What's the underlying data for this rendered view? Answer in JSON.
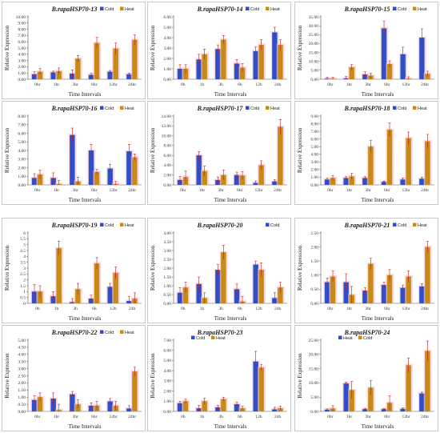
{
  "colors": {
    "cold": "#2f4fc8",
    "heat": "#c88a16",
    "error_bar": "#c81818",
    "glow": "#f2b8c8",
    "axis": "#555555"
  },
  "chart_data": [
    {
      "type": "bar",
      "title": "B.rapaHSP70-13",
      "xlabel": "Time Intervals",
      "ylabel": "Relative Expression",
      "categories": [
        "0hr",
        "1hr",
        "3hr",
        "6hr",
        "12hr",
        "24hr"
      ],
      "series": [
        {
          "name": "Cold",
          "color": "#2f4fc8",
          "values": [
            0.8,
            1.1,
            0.9,
            0.7,
            1.2,
            0.8
          ],
          "errors": [
            0.4,
            0.2,
            0.6,
            0.3,
            0.2,
            0.2
          ]
        },
        {
          "name": "Heat",
          "color": "#c88a16",
          "values": [
            1.2,
            1.3,
            3.3,
            5.8,
            4.9,
            6.3
          ],
          "errors": [
            0.5,
            0.5,
            0.5,
            0.9,
            0.9,
            0.8
          ]
        }
      ],
      "ylim": [
        0,
        10
      ],
      "yticks": [
        "0.00",
        "1.00",
        "2.00",
        "3.00",
        "4.00",
        "5.00",
        "6.00",
        "7.00",
        "8.00",
        "9.00",
        "10.00"
      ],
      "legend": "top-right"
    },
    {
      "type": "bar",
      "title": "B.rapaHSP70-14",
      "xlabel": "Time Intervals",
      "ylabel": "Relative Expression",
      "categories": [
        "0h",
        "1h",
        "3h",
        "6h",
        "12h",
        "24h"
      ],
      "series": [
        {
          "name": "Cold",
          "color": "#2f4fc8",
          "values": [
            1.0,
            1.9,
            2.9,
            1.5,
            2.7,
            4.5
          ],
          "errors": [
            0.4,
            0.5,
            0.4,
            0.4,
            0.4,
            0.5
          ]
        },
        {
          "name": "Heat",
          "color": "#c88a16",
          "values": [
            1.0,
            2.4,
            3.8,
            1.1,
            3.3,
            3.3
          ],
          "errors": [
            0.4,
            0.5,
            0.4,
            0.4,
            0.5,
            0.5
          ]
        }
      ],
      "ylim": [
        0,
        6
      ],
      "yticks": [
        "0.00",
        "1.00",
        "2.00",
        "3.00",
        "4.00",
        "5.00",
        "6.00"
      ],
      "legend": "top-right"
    },
    {
      "type": "bar",
      "title": "B.rapaHSP70-15",
      "xlabel": "Time Intervals",
      "ylabel": "Relative Expression",
      "categories": [
        "0hr",
        "1hr",
        "3hr",
        "6hr",
        "12hr",
        "24hr"
      ],
      "series": [
        {
          "name": "Cold",
          "color": "#2f4fc8",
          "values": [
            0.3,
            0.5,
            2.7,
            28.5,
            14.0,
            23.3
          ],
          "errors": [
            0.8,
            1.0,
            1.5,
            4.0,
            4.0,
            5.0
          ]
        },
        {
          "name": "Heat",
          "color": "#c88a16",
          "values": [
            0.3,
            6.7,
            2.0,
            8.5,
            0.4,
            3.0
          ],
          "errors": [
            0.8,
            1.5,
            1.3,
            1.8,
            1.0,
            1.5
          ]
        }
      ],
      "ylim": [
        0,
        35
      ],
      "yticks": [
        "0.00",
        "5.00",
        "10.00",
        "15.00",
        "20.00",
        "25.00",
        "30.00",
        "35.00"
      ],
      "legend": "top-right"
    },
    {
      "type": "bar",
      "title": "B.rapaHSP70-16",
      "xlabel": "Time Intervals",
      "ylabel": "Relative Expression",
      "categories": [
        "0hr",
        "1hr",
        "3hr",
        "6hr",
        "12hr",
        "24hr"
      ],
      "series": [
        {
          "name": "Cold",
          "color": "#2f4fc8",
          "values": [
            0.8,
            0.8,
            5.8,
            4.0,
            1.9,
            3.9
          ],
          "errors": [
            0.5,
            0.6,
            0.8,
            0.7,
            0.5,
            0.8
          ]
        },
        {
          "name": "Heat",
          "color": "#c88a16",
          "values": [
            1.2,
            0.1,
            0.4,
            1.5,
            0.1,
            3.2
          ],
          "errors": [
            0.5,
            0.4,
            0.5,
            0.3,
            0.3,
            0.4
          ]
        }
      ],
      "ylim": [
        0,
        8
      ],
      "yticks": [
        "0.00",
        "1.00",
        "2.00",
        "3.00",
        "4.00",
        "5.00",
        "6.00",
        "7.00",
        "8.00"
      ],
      "legend": "top-right"
    },
    {
      "type": "bar",
      "title": "B.rapaHSP70-17",
      "xlabel": "Time Intervals",
      "ylabel": "Relative Expression",
      "categories": [
        "0hr",
        "1hr",
        "3hr",
        "6hr",
        "12hr",
        "24hr"
      ],
      "series": [
        {
          "name": "Cold",
          "color": "#2f4fc8",
          "values": [
            1.0,
            6.0,
            1.0,
            2.0,
            0.4,
            0.7
          ],
          "errors": [
            0.7,
            0.8,
            0.6,
            0.6,
            0.4,
            0.4
          ]
        },
        {
          "name": "Heat",
          "color": "#c88a16",
          "values": [
            1.6,
            2.8,
            2.0,
            1.9,
            4.0,
            11.8
          ],
          "errors": [
            1.2,
            1.0,
            1.0,
            0.8,
            0.9,
            1.5
          ]
        }
      ],
      "ylim": [
        0,
        14
      ],
      "yticks": [
        "0.00",
        "2.00",
        "4.00",
        "6.00",
        "8.00",
        "10.00",
        "12.00",
        "14.00"
      ],
      "legend": "top-right"
    },
    {
      "type": "bar",
      "title": "B.rapaHSP70-18",
      "xlabel": "Time Intervals",
      "ylabel": "Relative Expression",
      "categories": [
        "0hr",
        "1hr",
        "3hr",
        "6hr",
        "12hr",
        "24hr"
      ],
      "series": [
        {
          "name": "Cold",
          "color": "#2f4fc8",
          "values": [
            0.7,
            0.9,
            0.9,
            0.4,
            0.7,
            0.8
          ],
          "errors": [
            0.2,
            0.2,
            0.2,
            0.1,
            0.2,
            0.2
          ]
        },
        {
          "name": "Heat",
          "color": "#c88a16",
          "values": [
            0.9,
            1.1,
            5.0,
            7.2,
            6.1,
            5.7
          ],
          "errors": [
            0.3,
            0.4,
            0.8,
            0.9,
            0.8,
            0.9
          ]
        }
      ],
      "ylim": [
        0,
        9
      ],
      "yticks": [
        "0.00",
        "1.00",
        "2.00",
        "3.00",
        "4.00",
        "5.00",
        "6.00",
        "7.00",
        "8.00",
        "9.00"
      ],
      "legend": "top-right"
    },
    {
      "type": "bar",
      "title": "B.rapaHSP70-19",
      "xlabel": "Time Intervals",
      "ylabel": "Relative Expression",
      "categories": [
        "0h",
        "1h",
        "3h",
        "6h",
        "12h",
        "24h"
      ],
      "series": [
        {
          "name": "Cold",
          "color": "#2f4fc8",
          "values": [
            1.0,
            0.6,
            0.1,
            0.4,
            1.4,
            0.2
          ],
          "errors": [
            0.6,
            0.4,
            0.3,
            0.3,
            0.3,
            0.4
          ]
        },
        {
          "name": "Heat",
          "color": "#c88a16",
          "values": [
            1.0,
            4.7,
            1.2,
            3.4,
            2.6,
            0.4
          ],
          "errors": [
            0.5,
            0.6,
            0.5,
            0.5,
            0.5,
            0.5
          ]
        }
      ],
      "ylim": [
        0,
        6
      ],
      "yticks": [
        "0",
        "0.5",
        "1",
        "1.5",
        "2",
        "2.5",
        "3",
        "3.5",
        "4",
        "4.5",
        "5",
        "5.5",
        "6"
      ],
      "legend": "top-right"
    },
    {
      "type": "bar",
      "title": "B.rapaHSP70-20",
      "xlabel": "Time Intervals",
      "ylabel": "Relative Expression",
      "categories": [
        "0h",
        "1h",
        "3h",
        "6h",
        "12h",
        "24h"
      ],
      "series": [
        {
          "name": "Cold",
          "color": "#2f4fc8",
          "values": [
            0.6,
            1.1,
            1.9,
            0.8,
            2.2,
            0.3
          ],
          "errors": [
            0.3,
            0.4,
            0.3,
            0.3,
            0.2,
            0.3
          ]
        },
        {
          "name": "Heat",
          "color": "#c88a16",
          "values": [
            0.9,
            0.3,
            2.9,
            0.1,
            1.9,
            0.9
          ],
          "errors": [
            0.3,
            0.3,
            0.4,
            0.3,
            0.4,
            0.3
          ]
        }
      ],
      "ylim": [
        0,
        4
      ],
      "yticks": [
        "0.00",
        "0.50",
        "1.00",
        "1.50",
        "2.00",
        "2.50",
        "3.00",
        "3.50",
        "4.00"
      ],
      "legend_entries": [
        "Cold"
      ],
      "legend": "top-right"
    },
    {
      "type": "bar",
      "title": "B.rapaHSP70-21",
      "xlabel": "Time Intervals",
      "ylabel": "Relative Expression",
      "categories": [
        "0hr",
        "1hr",
        "3hr",
        "6hr",
        "12hr",
        "24hr"
      ],
      "series": [
        {
          "name": "Cold",
          "color": "#2f4fc8",
          "values": [
            0.75,
            0.75,
            0.45,
            0.65,
            0.55,
            0.6
          ],
          "errors": [
            0.15,
            0.3,
            0.1,
            0.1,
            0.1,
            0.1
          ]
        },
        {
          "name": "Heat",
          "color": "#c88a16",
          "values": [
            0.95,
            0.3,
            1.4,
            1.0,
            0.95,
            2.0
          ],
          "errors": [
            0.2,
            0.3,
            0.2,
            0.2,
            0.2,
            0.2
          ]
        }
      ],
      "ylim": [
        0,
        2.5
      ],
      "yticks": [
        "0.00",
        "0.50",
        "1.00",
        "1.50",
        "2.00",
        "2.50"
      ],
      "legend": "top-right"
    },
    {
      "type": "bar",
      "title": "B.rapaHSP70-22",
      "xlabel": "Time Intervals",
      "ylabel": "Relative Expression",
      "categories": [
        "0hr",
        "1hr",
        "3hr",
        "6hr",
        "12hr",
        "24hr"
      ],
      "series": [
        {
          "name": "Cold",
          "color": "#2f4fc8",
          "values": [
            0.8,
            0.9,
            1.2,
            0.4,
            0.7,
            0.2
          ],
          "errors": [
            0.3,
            0.4,
            0.2,
            0.2,
            0.2,
            0.2
          ]
        },
        {
          "name": "Heat",
          "color": "#c88a16",
          "values": [
            1.0,
            0.1,
            0.5,
            0.4,
            0.4,
            2.8
          ],
          "errors": [
            0.3,
            0.4,
            0.3,
            0.3,
            0.3,
            0.3
          ]
        }
      ],
      "ylim": [
        0,
        5
      ],
      "yticks": [
        "0.00",
        "0.50",
        "1.00",
        "1.50",
        "2.00",
        "2.50",
        "3.00",
        "3.50",
        "4.00",
        "4.50",
        "5.00"
      ],
      "legend": "top-right"
    },
    {
      "type": "bar",
      "title": "B.rapaHSP70-23",
      "xlabel": "Time Intervals",
      "ylabel": "Relative Expression",
      "categories": [
        "0h",
        "1h",
        "3h",
        "6h",
        "12h",
        "24h"
      ],
      "series": [
        {
          "name": "Cold",
          "color": "#2f4fc8",
          "values": [
            0.8,
            0.3,
            0.4,
            0.7,
            4.9,
            0.2
          ],
          "errors": [
            0.2,
            0.3,
            0.2,
            0.2,
            1.0,
            0.2
          ]
        },
        {
          "name": "Heat",
          "color": "#c88a16",
          "values": [
            1.0,
            1.0,
            1.2,
            0.3,
            4.3,
            0.3
          ],
          "errors": [
            0.2,
            0.3,
            0.2,
            0.2,
            0.3,
            0.2
          ]
        }
      ],
      "ylim": [
        0,
        7
      ],
      "yticks": [
        "0.00",
        "1.00",
        "2.00",
        "3.00",
        "4.00",
        "5.00",
        "6.00",
        "7.00"
      ],
      "legend": "top-left"
    },
    {
      "type": "bar",
      "title": "B.rapaHSP70-24",
      "xlabel": "Time Intervals",
      "ylabel": "Relative Expression",
      "categories": [
        "0hr",
        "1hr",
        "3hr",
        "6hr",
        "12hr",
        "24hr"
      ],
      "series": [
        {
          "name": "Heat",
          "color": "#2f4fc8",
          "values": [
            0.6,
            9.8,
            0.8,
            0.8,
            0.9,
            6.3
          ],
          "errors": [
            0.3,
            0.5,
            0.3,
            0.3,
            0.3,
            0.5
          ]
        },
        {
          "name": "Cold",
          "color": "#c88a16",
          "values": [
            1.0,
            7.5,
            8.3,
            3.0,
            16.2,
            21.2
          ],
          "errors": [
            1.0,
            3.0,
            2.5,
            2.5,
            2.5,
            3.5
          ]
        }
      ],
      "ylim": [
        0,
        25
      ],
      "yticks": [
        "0.00",
        "5.00",
        "10.00",
        "15.00",
        "20.00",
        "25.00"
      ],
      "legend": "top-left"
    }
  ]
}
